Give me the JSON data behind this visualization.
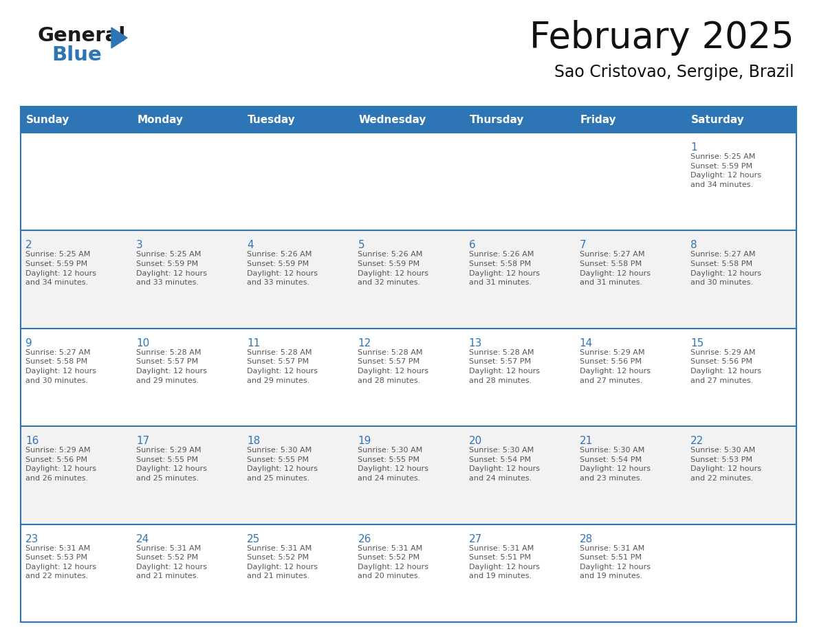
{
  "title": "February 2025",
  "subtitle": "Sao Cristovao, Sergipe, Brazil",
  "header_bg": "#2E75B6",
  "header_text_color": "#FFFFFF",
  "cell_bg_white": "#FFFFFF",
  "cell_bg_gray": "#F2F2F2",
  "border_color": "#2E75B6",
  "day_number_color": "#2E75B6",
  "text_color": "#555555",
  "days_of_week": [
    "Sunday",
    "Monday",
    "Tuesday",
    "Wednesday",
    "Thursday",
    "Friday",
    "Saturday"
  ],
  "weeks": [
    [
      {
        "day": null,
        "info": null
      },
      {
        "day": null,
        "info": null
      },
      {
        "day": null,
        "info": null
      },
      {
        "day": null,
        "info": null
      },
      {
        "day": null,
        "info": null
      },
      {
        "day": null,
        "info": null
      },
      {
        "day": 1,
        "info": "Sunrise: 5:25 AM\nSunset: 5:59 PM\nDaylight: 12 hours\nand 34 minutes."
      }
    ],
    [
      {
        "day": 2,
        "info": "Sunrise: 5:25 AM\nSunset: 5:59 PM\nDaylight: 12 hours\nand 34 minutes."
      },
      {
        "day": 3,
        "info": "Sunrise: 5:25 AM\nSunset: 5:59 PM\nDaylight: 12 hours\nand 33 minutes."
      },
      {
        "day": 4,
        "info": "Sunrise: 5:26 AM\nSunset: 5:59 PM\nDaylight: 12 hours\nand 33 minutes."
      },
      {
        "day": 5,
        "info": "Sunrise: 5:26 AM\nSunset: 5:59 PM\nDaylight: 12 hours\nand 32 minutes."
      },
      {
        "day": 6,
        "info": "Sunrise: 5:26 AM\nSunset: 5:58 PM\nDaylight: 12 hours\nand 31 minutes."
      },
      {
        "day": 7,
        "info": "Sunrise: 5:27 AM\nSunset: 5:58 PM\nDaylight: 12 hours\nand 31 minutes."
      },
      {
        "day": 8,
        "info": "Sunrise: 5:27 AM\nSunset: 5:58 PM\nDaylight: 12 hours\nand 30 minutes."
      }
    ],
    [
      {
        "day": 9,
        "info": "Sunrise: 5:27 AM\nSunset: 5:58 PM\nDaylight: 12 hours\nand 30 minutes."
      },
      {
        "day": 10,
        "info": "Sunrise: 5:28 AM\nSunset: 5:57 PM\nDaylight: 12 hours\nand 29 minutes."
      },
      {
        "day": 11,
        "info": "Sunrise: 5:28 AM\nSunset: 5:57 PM\nDaylight: 12 hours\nand 29 minutes."
      },
      {
        "day": 12,
        "info": "Sunrise: 5:28 AM\nSunset: 5:57 PM\nDaylight: 12 hours\nand 28 minutes."
      },
      {
        "day": 13,
        "info": "Sunrise: 5:28 AM\nSunset: 5:57 PM\nDaylight: 12 hours\nand 28 minutes."
      },
      {
        "day": 14,
        "info": "Sunrise: 5:29 AM\nSunset: 5:56 PM\nDaylight: 12 hours\nand 27 minutes."
      },
      {
        "day": 15,
        "info": "Sunrise: 5:29 AM\nSunset: 5:56 PM\nDaylight: 12 hours\nand 27 minutes."
      }
    ],
    [
      {
        "day": 16,
        "info": "Sunrise: 5:29 AM\nSunset: 5:56 PM\nDaylight: 12 hours\nand 26 minutes."
      },
      {
        "day": 17,
        "info": "Sunrise: 5:29 AM\nSunset: 5:55 PM\nDaylight: 12 hours\nand 25 minutes."
      },
      {
        "day": 18,
        "info": "Sunrise: 5:30 AM\nSunset: 5:55 PM\nDaylight: 12 hours\nand 25 minutes."
      },
      {
        "day": 19,
        "info": "Sunrise: 5:30 AM\nSunset: 5:55 PM\nDaylight: 12 hours\nand 24 minutes."
      },
      {
        "day": 20,
        "info": "Sunrise: 5:30 AM\nSunset: 5:54 PM\nDaylight: 12 hours\nand 24 minutes."
      },
      {
        "day": 21,
        "info": "Sunrise: 5:30 AM\nSunset: 5:54 PM\nDaylight: 12 hours\nand 23 minutes."
      },
      {
        "day": 22,
        "info": "Sunrise: 5:30 AM\nSunset: 5:53 PM\nDaylight: 12 hours\nand 22 minutes."
      }
    ],
    [
      {
        "day": 23,
        "info": "Sunrise: 5:31 AM\nSunset: 5:53 PM\nDaylight: 12 hours\nand 22 minutes."
      },
      {
        "day": 24,
        "info": "Sunrise: 5:31 AM\nSunset: 5:52 PM\nDaylight: 12 hours\nand 21 minutes."
      },
      {
        "day": 25,
        "info": "Sunrise: 5:31 AM\nSunset: 5:52 PM\nDaylight: 12 hours\nand 21 minutes."
      },
      {
        "day": 26,
        "info": "Sunrise: 5:31 AM\nSunset: 5:52 PM\nDaylight: 12 hours\nand 20 minutes."
      },
      {
        "day": 27,
        "info": "Sunrise: 5:31 AM\nSunset: 5:51 PM\nDaylight: 12 hours\nand 19 minutes."
      },
      {
        "day": 28,
        "info": "Sunrise: 5:31 AM\nSunset: 5:51 PM\nDaylight: 12 hours\nand 19 minutes."
      },
      {
        "day": null,
        "info": null
      }
    ]
  ],
  "logo_general_color": "#1a1a1a",
  "logo_blue_color": "#2E75B6"
}
